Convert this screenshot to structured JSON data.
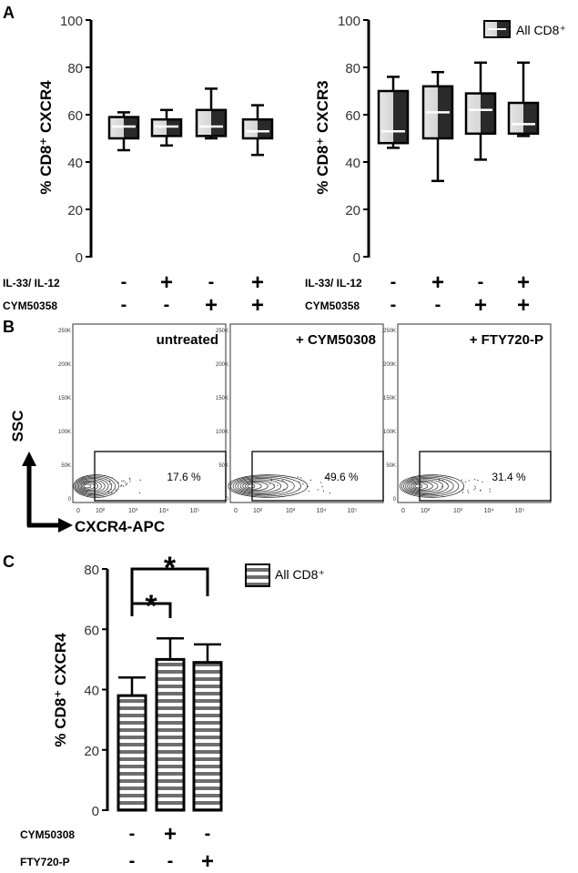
{
  "panel_letters": [
    "A",
    "B",
    "C"
  ],
  "legend_label": "All CD8⁺",
  "chart_data": [
    {
      "id": "A-left",
      "type": "box",
      "ylabel": "% CD8⁺ CXCR4",
      "ylim": [
        0,
        100
      ],
      "yticks": [
        "0",
        "20",
        "40",
        "60",
        "80",
        "100"
      ],
      "legend": "",
      "conditions": [
        {
          "label": "IL-33/ IL-12",
          "marks": [
            "-",
            "+",
            "-",
            "+"
          ]
        },
        {
          "label": "CYM50358",
          "marks": [
            "-",
            "-",
            "+",
            "+"
          ]
        }
      ],
      "boxes": [
        {
          "min": 45,
          "q1": 50,
          "median": 55,
          "q3": 59,
          "max": 61
        },
        {
          "min": 47,
          "q1": 51,
          "median": 55,
          "q3": 58,
          "max": 62
        },
        {
          "min": 50,
          "q1": 51,
          "median": 55,
          "q3": 62,
          "max": 71
        },
        {
          "min": 43,
          "q1": 50,
          "median": 53,
          "q3": 58,
          "max": 64
        }
      ]
    },
    {
      "id": "A-right",
      "type": "box",
      "ylabel": "% CD8⁺ CXCR3",
      "ylim": [
        0,
        100
      ],
      "yticks": [
        "0",
        "20",
        "40",
        "60",
        "80",
        "100"
      ],
      "legend": "All CD8⁺",
      "conditions": [
        {
          "label": "IL-33/ IL-12",
          "marks": [
            "-",
            "+",
            "-",
            "+"
          ]
        },
        {
          "label": "CYM50358",
          "marks": [
            "-",
            "-",
            "+",
            "+"
          ]
        }
      ],
      "boxes": [
        {
          "min": 46,
          "q1": 48,
          "median": 53,
          "q3": 70,
          "max": 76
        },
        {
          "min": 32,
          "q1": 50,
          "median": 61,
          "q3": 72,
          "max": 78
        },
        {
          "min": 41,
          "q1": 52,
          "median": 62,
          "q3": 69,
          "max": 82
        },
        {
          "min": 51,
          "q1": 52,
          "median": 56,
          "q3": 65,
          "max": 82
        }
      ]
    },
    {
      "id": "B",
      "type": "flow-contour",
      "ylabel": "SSC",
      "xlabel": "CXCR4-APC",
      "yticks": [
        "0",
        "50K",
        "100K",
        "150K",
        "200K",
        "250K"
      ],
      "xticks": [
        "0",
        "10²",
        "10³",
        "10⁴",
        "10⁵"
      ],
      "plots": [
        {
          "title": "untreated",
          "gate_percent": "17.6 %"
        },
        {
          "title": "+ CYM50308",
          "gate_percent": "49.6 %"
        },
        {
          "title": "+ FTY720-P",
          "gate_percent": "31.4 %"
        }
      ]
    },
    {
      "id": "C",
      "type": "bar",
      "ylabel": "% CD8⁺ CXCR4",
      "ylim": [
        0,
        80
      ],
      "yticks": [
        "0",
        "20",
        "40",
        "60",
        "80"
      ],
      "legend": "All CD8⁺",
      "conditions": [
        {
          "label": "CYM50308",
          "marks": [
            "-",
            "+",
            "-"
          ]
        },
        {
          "label": "FTY720-P",
          "marks": [
            "-",
            "-",
            "+"
          ]
        }
      ],
      "bars": [
        {
          "value": 38,
          "error": 6
        },
        {
          "value": 50,
          "error": 7
        },
        {
          "value": 49,
          "error": 6
        }
      ],
      "significance": [
        {
          "from": 0,
          "to": 1,
          "label": "*"
        },
        {
          "from": 0,
          "to": 2,
          "label": "*"
        }
      ]
    }
  ]
}
